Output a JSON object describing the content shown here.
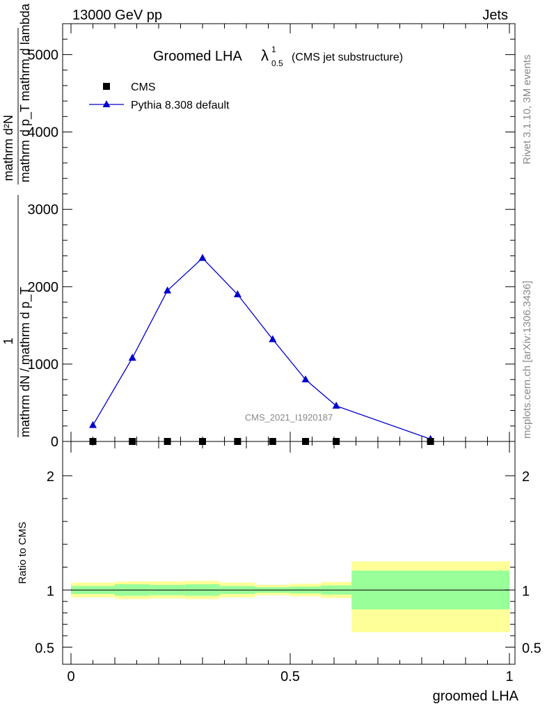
{
  "header": {
    "left": "13000 GeV pp",
    "right": "Jets"
  },
  "side_texts": {
    "rivet": "Rivet 3.1.10,  3M events",
    "mcplots": "mcplots.cern.ch [arXiv:1306.3436]"
  },
  "watermark": "CMS_2021_I1920187",
  "colors": {
    "mc": "#0000cc",
    "band_inner": "#99ff99",
    "band_outer": "#ffff99",
    "data": "#000000"
  },
  "chart_data": [
    {
      "type": "line",
      "panel": "main",
      "title": {
        "main": "Groomed LHA",
        "symbol": "λ",
        "superscript": "1",
        "subscript": "0.5",
        "suffix": "(CMS jet substructure)"
      },
      "ylabel": {
        "num": "mathrm d²N",
        "den": "mathrm d p_T mathrm d lambda",
        "num2": "1",
        "den2": "mathrm dN / mathrm d p_T"
      },
      "xlim": [
        0,
        1
      ],
      "ylim": [
        0,
        5400
      ],
      "yticks": [
        0,
        1000,
        2000,
        3000,
        4000,
        5000
      ],
      "ytick_labels": [
        "0",
        "1000",
        "2000",
        "3000",
        "4000",
        "5000"
      ],
      "legend": {
        "position": "top-left",
        "entries": [
          {
            "label": "CMS",
            "marker": "square"
          },
          {
            "label": "Pythia 8.308 default",
            "marker": "triangle"
          }
        ]
      },
      "series": [
        {
          "name": "CMS",
          "x": [
            0.05,
            0.14,
            0.22,
            0.3,
            0.38,
            0.46,
            0.535,
            0.605,
            0.82
          ],
          "y": [
            0,
            0,
            0,
            0,
            0,
            0,
            0,
            0,
            0
          ]
        },
        {
          "name": "Pythia 8.308 default",
          "x": [
            0.05,
            0.14,
            0.22,
            0.3,
            0.38,
            0.46,
            0.535,
            0.605,
            0.82
          ],
          "y": [
            210,
            1080,
            1950,
            2370,
            1900,
            1320,
            800,
            460,
            30
          ]
        }
      ]
    },
    {
      "type": "area",
      "panel": "ratio",
      "ylabel": "Ratio to CMS",
      "xlabel": "groomed LHA",
      "xlim": [
        0,
        1
      ],
      "ylim": [
        0.35,
        2.3
      ],
      "xticks": [
        0,
        0.5,
        1
      ],
      "xtick_labels": [
        "0",
        "0.5",
        "1"
      ],
      "yticks": [
        0.5,
        1,
        2
      ],
      "ytick_labels": [
        "0.5",
        "1",
        "2"
      ],
      "reference_line": 1,
      "bins": [
        {
          "x0": 0.0,
          "x1": 0.1,
          "inner": [
            0.965,
            1.035
          ],
          "outer": [
            0.935,
            1.065
          ]
        },
        {
          "x0": 0.1,
          "x1": 0.18,
          "inner": [
            0.95,
            1.05
          ],
          "outer": [
            0.92,
            1.075
          ]
        },
        {
          "x0": 0.18,
          "x1": 0.26,
          "inner": [
            0.955,
            1.045
          ],
          "outer": [
            0.925,
            1.075
          ]
        },
        {
          "x0": 0.26,
          "x1": 0.34,
          "inner": [
            0.95,
            1.05
          ],
          "outer": [
            0.92,
            1.08
          ]
        },
        {
          "x0": 0.34,
          "x1": 0.42,
          "inner": [
            0.965,
            1.035
          ],
          "outer": [
            0.935,
            1.065
          ]
        },
        {
          "x0": 0.42,
          "x1": 0.5,
          "inner": [
            0.975,
            1.025
          ],
          "outer": [
            0.955,
            1.045
          ]
        },
        {
          "x0": 0.5,
          "x1": 0.57,
          "inner": [
            0.97,
            1.03
          ],
          "outer": [
            0.945,
            1.055
          ]
        },
        {
          "x0": 0.57,
          "x1": 0.64,
          "inner": [
            0.96,
            1.04
          ],
          "outer": [
            0.93,
            1.07
          ]
        },
        {
          "x0": 0.64,
          "x1": 1.0,
          "inner": [
            0.83,
            1.17
          ],
          "outer": [
            0.63,
            1.25
          ]
        }
      ]
    }
  ]
}
